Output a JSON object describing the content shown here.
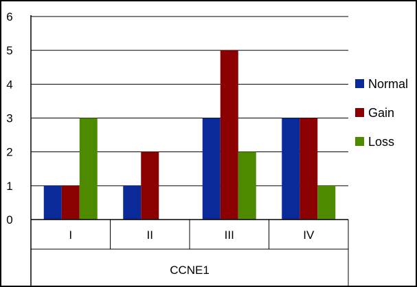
{
  "chart_data": {
    "type": "bar",
    "categories": [
      "I",
      "II",
      "III",
      "IV"
    ],
    "xlabel": "CCNE1",
    "ylim": [
      0,
      6
    ],
    "yticks": [
      0,
      1,
      2,
      3,
      4,
      5,
      6
    ],
    "grid": true,
    "legend_position": "right",
    "series": [
      {
        "name": "Normal",
        "color": "#0a2a9a",
        "values": [
          1,
          1,
          3,
          3
        ]
      },
      {
        "name": "Gain",
        "color": "#8b0000",
        "values": [
          1,
          2,
          5,
          3
        ]
      },
      {
        "name": "Loss",
        "color": "#4e8a00",
        "values": [
          3,
          0,
          2,
          1
        ]
      }
    ]
  }
}
